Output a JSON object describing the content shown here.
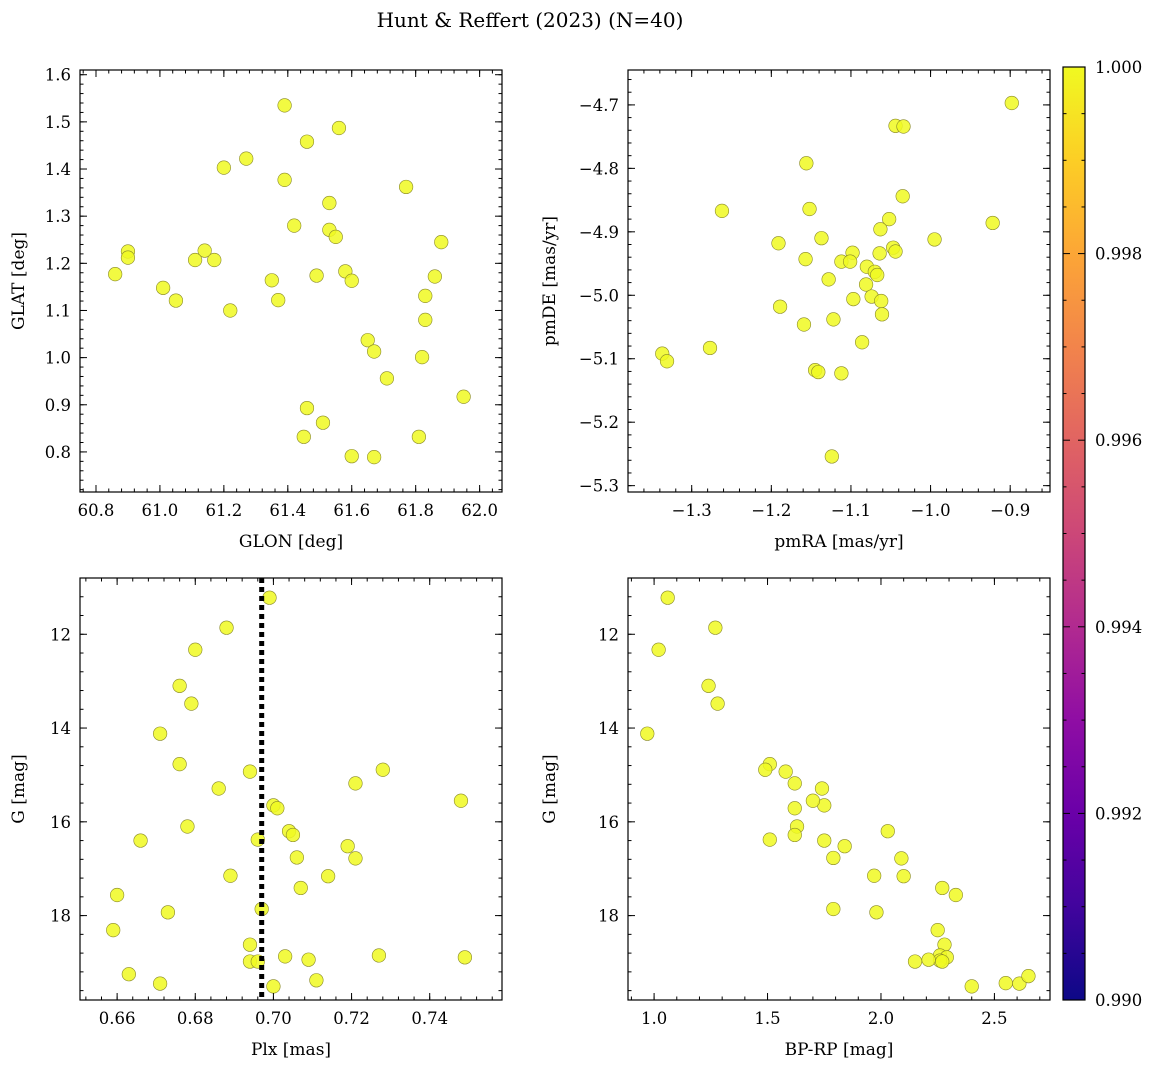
{
  "title": "Hunt & Reffert (2023) (N=40)",
  "colorbar": {
    "range": [
      0.99,
      1.0
    ],
    "tick_labels": [
      "0.990",
      "0.992",
      "0.994",
      "0.996",
      "0.998",
      "1.000"
    ],
    "colormap": "plasma",
    "point_color": "#f0f921"
  },
  "chart_data": [
    {
      "type": "scatter",
      "xlabel": "GLON [deg]",
      "ylabel": "GLAT [deg]",
      "xlim": [
        60.75,
        62.07
      ],
      "ylim": [
        0.715,
        1.61
      ],
      "x_ticks": [
        60.8,
        61.0,
        61.2,
        61.4,
        61.6,
        61.8,
        62.0
      ],
      "x_tick_labels": [
        "60.8",
        "61.0",
        "61.2",
        "61.4",
        "61.6",
        "61.8",
        "62.0"
      ],
      "y_ticks": [
        0.8,
        0.9,
        1.0,
        1.1,
        1.2,
        1.3,
        1.4,
        1.5,
        1.6
      ],
      "y_tick_labels": [
        "0.8",
        "0.9",
        "1.0",
        "1.1",
        "1.2",
        "1.3",
        "1.4",
        "1.5",
        "1.6"
      ],
      "points": [
        [
          61.39,
          1.535
        ],
        [
          61.56,
          1.487
        ],
        [
          61.46,
          1.458
        ],
        [
          61.27,
          1.422
        ],
        [
          61.2,
          1.403
        ],
        [
          61.39,
          1.377
        ],
        [
          61.77,
          1.362
        ],
        [
          61.53,
          1.328
        ],
        [
          61.42,
          1.28
        ],
        [
          61.53,
          1.271
        ],
        [
          61.55,
          1.256
        ],
        [
          60.9,
          1.225
        ],
        [
          61.14,
          1.227
        ],
        [
          60.9,
          1.212
        ],
        [
          61.11,
          1.207
        ],
        [
          61.17,
          1.207
        ],
        [
          60.86,
          1.177
        ],
        [
          61.49,
          1.174
        ],
        [
          61.58,
          1.183
        ],
        [
          61.86,
          1.172
        ],
        [
          61.35,
          1.164
        ],
        [
          61.6,
          1.163
        ],
        [
          61.01,
          1.148
        ],
        [
          61.83,
          1.131
        ],
        [
          61.37,
          1.122
        ],
        [
          61.05,
          1.121
        ],
        [
          61.22,
          1.1
        ],
        [
          61.83,
          1.08
        ],
        [
          61.65,
          1.037
        ],
        [
          61.67,
          1.013
        ],
        [
          61.82,
          1.001
        ],
        [
          61.71,
          0.956
        ],
        [
          61.95,
          0.917
        ],
        [
          61.46,
          0.893
        ],
        [
          61.51,
          0.862
        ],
        [
          61.45,
          0.832
        ],
        [
          61.81,
          0.832
        ],
        [
          61.6,
          0.791
        ],
        [
          61.67,
          0.789
        ],
        [
          61.88,
          1.245
        ]
      ]
    },
    {
      "type": "scatter",
      "xlabel": "pmRA [mas/yr]",
      "ylabel": "pmDE [mas/yr]",
      "xlim": [
        -1.38,
        -0.85
      ],
      "ylim": [
        -5.31,
        -4.645
      ],
      "x_ticks": [
        -1.3,
        -1.2,
        -1.1,
        -1.0,
        -0.9
      ],
      "x_tick_labels": [
        "−1.3",
        "−1.2",
        "−1.1",
        "−1.0",
        "−0.9"
      ],
      "y_ticks": [
        -5.3,
        -5.2,
        -5.1,
        -5.0,
        -4.9,
        -4.8,
        -4.7
      ],
      "y_tick_labels": [
        "−5.3",
        "−5.2",
        "−5.1",
        "−5.0",
        "−4.9",
        "−4.8",
        "−4.7"
      ],
      "points": [
        [
          -0.898,
          -4.697
        ],
        [
          -1.044,
          -4.733
        ],
        [
          -1.034,
          -4.734
        ],
        [
          -1.156,
          -4.792
        ],
        [
          -1.035,
          -4.844
        ],
        [
          -1.262,
          -4.867
        ],
        [
          -1.152,
          -4.864
        ],
        [
          -0.922,
          -4.886
        ],
        [
          -1.052,
          -4.88
        ],
        [
          -1.063,
          -4.896
        ],
        [
          -1.137,
          -4.91
        ],
        [
          -0.995,
          -4.912
        ],
        [
          -1.191,
          -4.918
        ],
        [
          -1.047,
          -4.925
        ],
        [
          -1.044,
          -4.931
        ],
        [
          -1.098,
          -4.933
        ],
        [
          -1.064,
          -4.934
        ],
        [
          -1.157,
          -4.943
        ],
        [
          -1.112,
          -4.947
        ],
        [
          -1.101,
          -4.947
        ],
        [
          -1.08,
          -4.955
        ],
        [
          -1.07,
          -4.963
        ],
        [
          -1.067,
          -4.968
        ],
        [
          -1.081,
          -4.983
        ],
        [
          -1.074,
          -5.002
        ],
        [
          -1.097,
          -5.006
        ],
        [
          -1.062,
          -5.009
        ],
        [
          -1.189,
          -5.018
        ],
        [
          -1.061,
          -5.03
        ],
        [
          -1.122,
          -5.038
        ],
        [
          -1.159,
          -5.046
        ],
        [
          -1.086,
          -5.074
        ],
        [
          -1.277,
          -5.083
        ],
        [
          -1.337,
          -5.092
        ],
        [
          -1.331,
          -5.104
        ],
        [
          -1.145,
          -5.118
        ],
        [
          -1.141,
          -5.121
        ],
        [
          -1.112,
          -5.123
        ],
        [
          -1.124,
          -5.254
        ],
        [
          -1.128,
          -4.975
        ]
      ]
    },
    {
      "type": "scatter",
      "xlabel": "Plx [mas]",
      "ylabel": "G [mag]",
      "xlim": [
        0.6505,
        0.7585
      ],
      "ylim": [
        19.8,
        10.8
      ],
      "y_inverted": true,
      "vertical_line": {
        "x": 0.697,
        "style": "dotted",
        "color": "#000000"
      },
      "x_ticks": [
        0.66,
        0.68,
        0.7,
        0.72,
        0.74
      ],
      "x_tick_labels": [
        "0.66",
        "0.68",
        "0.70",
        "0.72",
        "0.74"
      ],
      "y_ticks": [
        12,
        14,
        16,
        18
      ],
      "y_tick_labels": [
        "12",
        "14",
        "16",
        "18"
      ],
      "points": [
        [
          0.699,
          11.22
        ],
        [
          0.688,
          11.86
        ],
        [
          0.68,
          12.33
        ],
        [
          0.676,
          13.1
        ],
        [
          0.679,
          13.48
        ],
        [
          0.671,
          14.12
        ],
        [
          0.676,
          14.77
        ],
        [
          0.728,
          14.89
        ],
        [
          0.694,
          14.93
        ],
        [
          0.748,
          15.55
        ],
        [
          0.721,
          15.18
        ],
        [
          0.686,
          15.29
        ],
        [
          0.7,
          15.65
        ],
        [
          0.701,
          15.71
        ],
        [
          0.678,
          16.1
        ],
        [
          0.704,
          16.2
        ],
        [
          0.705,
          16.28
        ],
        [
          0.666,
          16.4
        ],
        [
          0.696,
          16.38
        ],
        [
          0.719,
          16.52
        ],
        [
          0.706,
          16.76
        ],
        [
          0.721,
          16.78
        ],
        [
          0.689,
          17.15
        ],
        [
          0.714,
          17.16
        ],
        [
          0.707,
          17.41
        ],
        [
          0.66,
          17.56
        ],
        [
          0.697,
          17.86
        ],
        [
          0.673,
          17.93
        ],
        [
          0.694,
          18.62
        ],
        [
          0.659,
          18.31
        ],
        [
          0.727,
          18.85
        ],
        [
          0.749,
          18.89
        ],
        [
          0.703,
          18.87
        ],
        [
          0.709,
          18.94
        ],
        [
          0.694,
          18.98
        ],
        [
          0.696,
          18.98
        ],
        [
          0.663,
          19.25
        ],
        [
          0.711,
          19.38
        ],
        [
          0.671,
          19.45
        ],
        [
          0.7,
          19.51
        ]
      ]
    },
    {
      "type": "scatter",
      "xlabel": "BP-RP [mag]",
      "ylabel": "G [mag]",
      "xlim": [
        0.885,
        2.745
      ],
      "ylim": [
        19.8,
        10.8
      ],
      "y_inverted": true,
      "x_ticks": [
        1.0,
        1.5,
        2.0,
        2.5
      ],
      "x_tick_labels": [
        "1.0",
        "1.5",
        "2.0",
        "2.5"
      ],
      "y_ticks": [
        12,
        14,
        16,
        18
      ],
      "y_tick_labels": [
        "12",
        "14",
        "16",
        "18"
      ],
      "points": [
        [
          1.06,
          11.22
        ],
        [
          1.27,
          11.86
        ],
        [
          1.02,
          12.33
        ],
        [
          1.24,
          13.1
        ],
        [
          1.28,
          13.48
        ],
        [
          0.97,
          14.12
        ],
        [
          1.51,
          14.77
        ],
        [
          1.49,
          14.89
        ],
        [
          1.58,
          14.93
        ],
        [
          1.74,
          15.29
        ],
        [
          1.62,
          15.18
        ],
        [
          1.75,
          15.65
        ],
        [
          1.62,
          15.71
        ],
        [
          1.7,
          15.55
        ],
        [
          1.63,
          16.1
        ],
        [
          2.03,
          16.2
        ],
        [
          1.62,
          16.28
        ],
        [
          1.51,
          16.38
        ],
        [
          1.75,
          16.4
        ],
        [
          1.84,
          16.52
        ],
        [
          2.09,
          16.78
        ],
        [
          1.79,
          16.77
        ],
        [
          1.97,
          17.15
        ],
        [
          2.1,
          17.16
        ],
        [
          2.27,
          17.41
        ],
        [
          2.33,
          17.56
        ],
        [
          1.79,
          17.86
        ],
        [
          1.98,
          17.93
        ],
        [
          2.25,
          18.31
        ],
        [
          2.28,
          18.62
        ],
        [
          2.26,
          18.85
        ],
        [
          2.29,
          18.89
        ],
        [
          2.26,
          18.96
        ],
        [
          2.21,
          18.94
        ],
        [
          2.15,
          18.98
        ],
        [
          2.4,
          19.51
        ],
        [
          2.55,
          19.44
        ],
        [
          2.61,
          19.45
        ],
        [
          2.65,
          19.29
        ],
        [
          2.27,
          18.98
        ]
      ]
    }
  ]
}
